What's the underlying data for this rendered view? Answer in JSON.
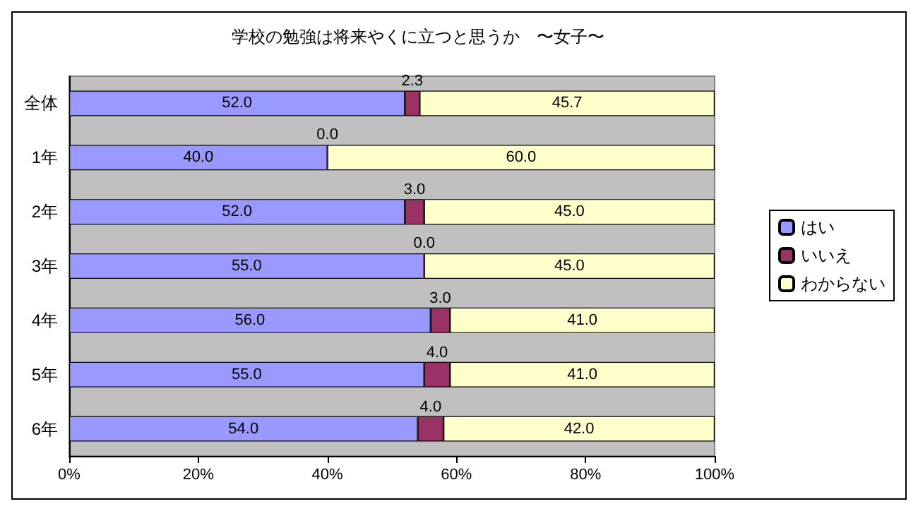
{
  "chart_data": {
    "type": "bar",
    "orientation": "horizontal",
    "stacked": true,
    "title": "学校の勉強は将来やくに立つと思うか　〜女子〜",
    "categories": [
      "全体",
      "1年",
      "2年",
      "3年",
      "4年",
      "5年",
      "6年"
    ],
    "series": [
      {
        "name": "はい",
        "color": "#9999ff",
        "values": [
          52.0,
          40.0,
          52.0,
          55.0,
          56.0,
          55.0,
          54.0
        ],
        "value_labels": [
          "52.0",
          "40.0",
          "52.0",
          "55.0",
          "56.0",
          "55.0",
          "54.0"
        ]
      },
      {
        "name": "いいえ",
        "color": "#993366",
        "values": [
          2.3,
          0.0,
          3.0,
          0.0,
          3.0,
          4.0,
          4.0
        ],
        "value_labels": [
          "2.3",
          "0.0",
          "3.0",
          "0.0",
          "3.0",
          "4.0",
          "4.0"
        ]
      },
      {
        "name": "わからない",
        "color": "#ffffcc",
        "values": [
          45.7,
          60.0,
          45.0,
          45.0,
          41.0,
          41.0,
          42.0
        ],
        "value_labels": [
          "45.7",
          "60.0",
          "45.0",
          "45.0",
          "41.0",
          "41.0",
          "42.0"
        ]
      }
    ],
    "xlim": [
      0,
      100
    ],
    "xticks": [
      {
        "value": 0,
        "label": "0%"
      },
      {
        "value": 20,
        "label": "20%"
      },
      {
        "value": 40,
        "label": "40%"
      },
      {
        "value": 60,
        "label": "60%"
      },
      {
        "value": 80,
        "label": "80%"
      },
      {
        "value": 100,
        "label": "100%"
      }
    ],
    "legend": "right"
  }
}
